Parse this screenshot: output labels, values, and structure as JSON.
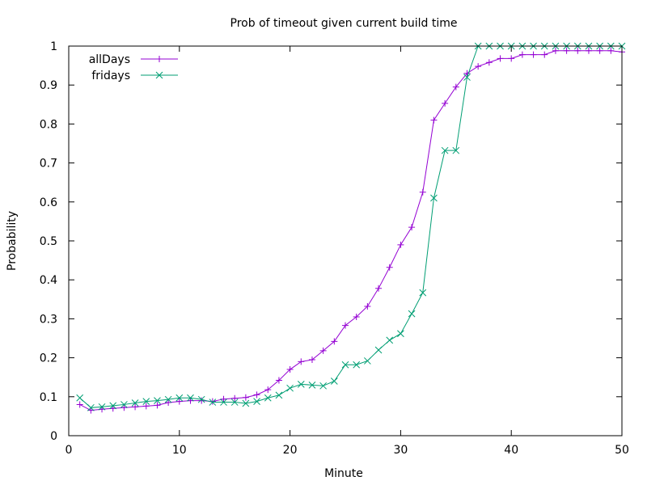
{
  "chart_data": {
    "type": "line",
    "title": "Prob of timeout given current build time",
    "xlabel": "Minute",
    "ylabel": "Probability",
    "xlim": [
      0,
      50
    ],
    "ylim": [
      0,
      1
    ],
    "xticks": [
      0,
      10,
      20,
      30,
      40,
      50
    ],
    "yticks": [
      0,
      0.1,
      0.2,
      0.3,
      0.4,
      0.5,
      0.6,
      0.7,
      0.8,
      0.9,
      1
    ],
    "xtick_labels": [
      "0",
      "10",
      "20",
      "30",
      "40",
      "50"
    ],
    "ytick_labels": [
      "0",
      "0.1",
      "0.2",
      "0.3",
      "0.4",
      "0.5",
      "0.6",
      "0.7",
      "0.8",
      "0.9",
      "1"
    ],
    "grid": false,
    "legend_position": "top-left",
    "x": [
      1,
      2,
      3,
      4,
      5,
      6,
      7,
      8,
      9,
      10,
      11,
      12,
      13,
      14,
      15,
      16,
      17,
      18,
      19,
      20,
      21,
      22,
      23,
      24,
      25,
      26,
      27,
      28,
      29,
      30,
      31,
      32,
      33,
      34,
      35,
      36,
      37,
      38,
      39,
      40,
      41,
      42,
      43,
      44,
      45,
      46,
      47,
      48,
      49,
      50
    ],
    "series": [
      {
        "name": "allDays",
        "color": "#9400d3",
        "marker": "plus",
        "values": [
          0.08,
          0.065,
          0.068,
          0.07,
          0.072,
          0.074,
          0.076,
          0.078,
          0.085,
          0.088,
          0.09,
          0.09,
          0.088,
          0.094,
          0.096,
          0.098,
          0.105,
          0.118,
          0.142,
          0.17,
          0.19,
          0.195,
          0.218,
          0.242,
          0.283,
          0.305,
          0.332,
          0.378,
          0.432,
          0.49,
          0.535,
          0.625,
          0.81,
          0.853,
          0.895,
          0.93,
          0.948,
          0.958,
          0.968,
          0.968,
          0.978,
          0.978,
          0.978,
          0.988,
          0.988,
          0.988,
          0.988,
          0.988,
          0.988,
          0.985
        ]
      },
      {
        "name": "fridays",
        "color": "#009e73",
        "marker": "cross",
        "values": [
          0.097,
          0.072,
          0.074,
          0.077,
          0.08,
          0.084,
          0.088,
          0.09,
          0.093,
          0.097,
          0.097,
          0.093,
          0.086,
          0.086,
          0.086,
          0.083,
          0.088,
          0.097,
          0.104,
          0.122,
          0.132,
          0.13,
          0.128,
          0.14,
          0.182,
          0.182,
          0.192,
          0.22,
          0.245,
          0.262,
          0.313,
          0.367,
          0.61,
          0.732,
          0.732,
          0.92,
          1,
          1,
          1,
          1,
          1,
          1,
          1,
          1,
          1,
          1,
          1,
          1,
          1,
          1
        ]
      }
    ]
  }
}
